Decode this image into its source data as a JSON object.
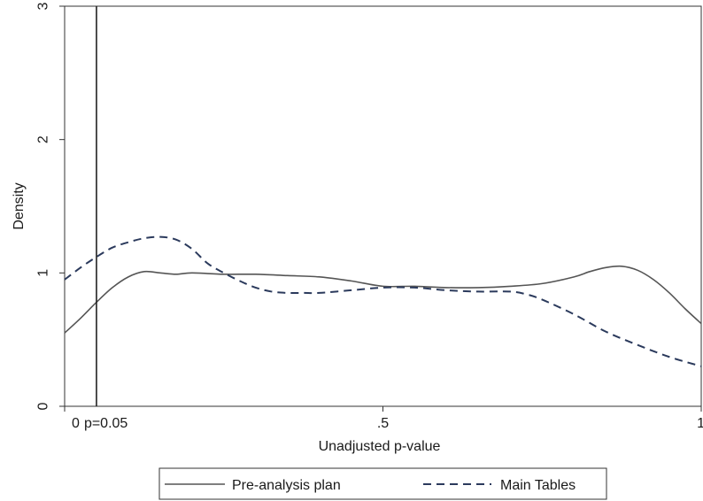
{
  "chart_data": {
    "type": "line",
    "title": "",
    "xlabel": "Unadjusted p-value",
    "ylabel": "Density",
    "xlim": [
      0,
      1
    ],
    "ylim": [
      0,
      3
    ],
    "x_ticks": [
      {
        "value": 0,
        "label": "0"
      },
      {
        "value": 0.5,
        "label": ".5"
      },
      {
        "value": 1,
        "label": "1"
      }
    ],
    "y_ticks": [
      {
        "value": 0,
        "label": "0"
      },
      {
        "value": 1,
        "label": "1"
      },
      {
        "value": 2,
        "label": "2"
      },
      {
        "value": 3,
        "label": "3"
      }
    ],
    "vline": {
      "x": 0.05,
      "label": "p=0.05"
    },
    "grid": false,
    "legend_position": "bottom",
    "series": [
      {
        "name": "Pre-analysis plan",
        "style": "solid",
        "color": "#555555",
        "x": [
          0.0,
          0.025,
          0.05,
          0.075,
          0.1,
          0.125,
          0.15,
          0.175,
          0.2,
          0.25,
          0.3,
          0.35,
          0.4,
          0.45,
          0.5,
          0.55,
          0.6,
          0.65,
          0.7,
          0.75,
          0.8,
          0.825,
          0.85,
          0.875,
          0.9,
          0.925,
          0.95,
          0.975,
          1.0
        ],
        "y": [
          0.55,
          0.66,
          0.78,
          0.89,
          0.97,
          1.01,
          1.0,
          0.99,
          1.0,
          0.99,
          0.99,
          0.98,
          0.97,
          0.94,
          0.9,
          0.9,
          0.89,
          0.89,
          0.9,
          0.92,
          0.97,
          1.01,
          1.04,
          1.05,
          1.02,
          0.95,
          0.85,
          0.73,
          0.62
        ]
      },
      {
        "name": "Main Tables",
        "style": "dashed",
        "color": "#2b3a5c",
        "x": [
          0.0,
          0.025,
          0.05,
          0.075,
          0.1,
          0.125,
          0.15,
          0.175,
          0.2,
          0.225,
          0.25,
          0.275,
          0.3,
          0.325,
          0.35,
          0.375,
          0.4,
          0.45,
          0.5,
          0.55,
          0.6,
          0.65,
          0.7,
          0.725,
          0.75,
          0.8,
          0.85,
          0.9,
          0.95,
          1.0
        ],
        "y": [
          0.95,
          1.04,
          1.12,
          1.19,
          1.23,
          1.26,
          1.27,
          1.25,
          1.18,
          1.07,
          1.0,
          0.94,
          0.89,
          0.86,
          0.85,
          0.85,
          0.85,
          0.87,
          0.89,
          0.89,
          0.87,
          0.86,
          0.86,
          0.84,
          0.8,
          0.69,
          0.56,
          0.46,
          0.37,
          0.3
        ]
      }
    ]
  }
}
